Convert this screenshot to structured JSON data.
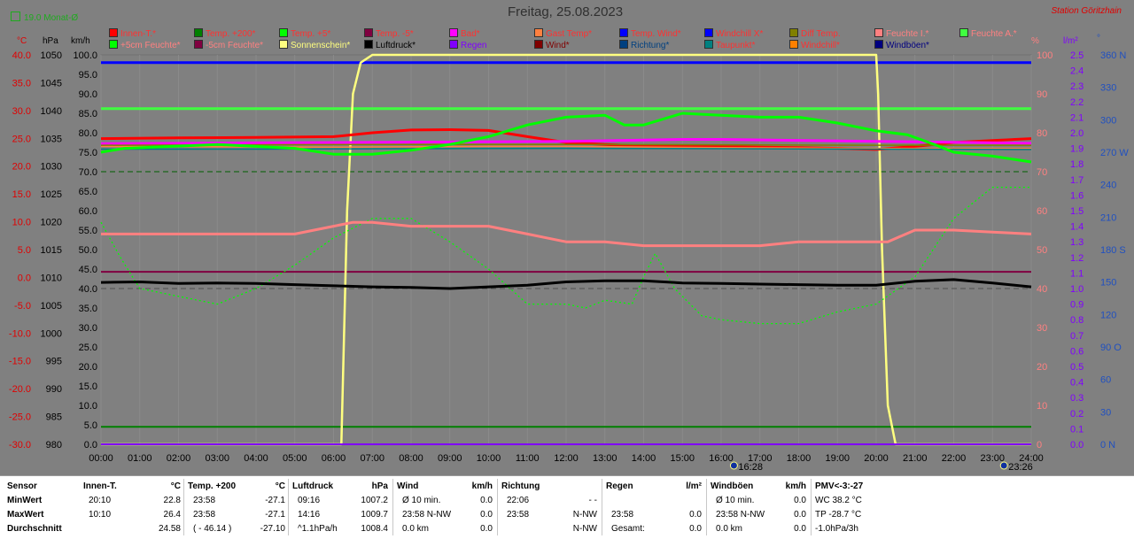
{
  "header": {
    "month_avg": "19.0 Monat-Ø",
    "title": "Freitag, 25.08.2023",
    "station": "Station Göritzhain"
  },
  "legend": [
    {
      "label": "Innen-T.*",
      "color": "#ff0000",
      "text_color": "#ff3030"
    },
    {
      "label": "Temp. +200*",
      "color": "#008000",
      "text_color": "#ff3030"
    },
    {
      "label": "Temp. +5*",
      "color": "#00ff00",
      "text_color": "#ff3030"
    },
    {
      "label": "Temp. -5*",
      "color": "#800040",
      "text_color": "#ff3030"
    },
    {
      "label": "Bad*",
      "color": "#ff00ff",
      "text_color": "#ff3030"
    },
    {
      "label": "Gast Temp*",
      "color": "#ff8040",
      "text_color": "#ff3030"
    },
    {
      "label": "Temp. Wind*",
      "color": "#0000ff",
      "text_color": "#ff3030"
    },
    {
      "label": "Windchill X*",
      "color": "#0000ff",
      "text_color": "#ff3030"
    },
    {
      "label": "Diff Temp.",
      "color": "#808000",
      "text_color": "#ff3030"
    },
    {
      "label": "Feuchte I.*",
      "color": "#ff8080",
      "text_color": "#ff8080"
    },
    {
      "label": "Feuchte A.*",
      "color": "#40ff40",
      "text_color": "#ff8080"
    },
    {
      "label": "+5cm Feuchte*",
      "color": "#00ff00",
      "text_color": "#ff8080"
    },
    {
      "label": "-5cm Feuchte*",
      "color": "#800040",
      "text_color": "#ff8080"
    },
    {
      "label": "Sonnenschein*",
      "color": "#ffff80",
      "text_color": "#ffff80"
    },
    {
      "label": "Luftdruck*",
      "color": "#000000",
      "text_color": "#000000"
    },
    {
      "label": "Regen",
      "color": "#8000ff",
      "text_color": "#8000ff"
    },
    {
      "label": "Wind*",
      "color": "#800000",
      "text_color": "#800000"
    },
    {
      "label": "Richtung*",
      "color": "#004080",
      "text_color": "#004080"
    },
    {
      "label": "Taupunkt*",
      "color": "#008080",
      "text_color": "#ff3030"
    },
    {
      "label": "Windchill*",
      "color": "#ff8000",
      "text_color": "#ff3030"
    },
    {
      "label": "Windböen*",
      "color": "#000080",
      "text_color": "#000080"
    }
  ],
  "units": {
    "celsius": "°C",
    "hpa": "hPa",
    "kmh": "km/h",
    "percent": "%",
    "rain": "l/m²",
    "degree": "°"
  },
  "chart_data": {
    "type": "line",
    "title": "Freitag, 25.08.2023",
    "x_ticks": [
      "00:00",
      "01:00",
      "02:00",
      "03:00",
      "04:00",
      "05:00",
      "06:00",
      "07:00",
      "08:00",
      "09:00",
      "10:00",
      "11:00",
      "12:00",
      "13:00",
      "14:00",
      "15:00",
      "16:00",
      "17:00",
      "18:00",
      "19:00",
      "20:00",
      "21:00",
      "22:00",
      "23:00",
      "24:00"
    ],
    "sunrise": "6:14",
    "sunset": "20:13",
    "moonrise": "16:28",
    "moonset": "23:26",
    "axes": {
      "temp_c": {
        "label": "°C",
        "ticks": [
          "40.0",
          "35.0",
          "30.0",
          "25.0",
          "20.0",
          "15.0",
          "10.0",
          "5.0",
          "0.0",
          "-5.0",
          "-10.0",
          "-15.0",
          "-20.0",
          "-25.0",
          "-30.0"
        ],
        "range": [
          -30,
          40
        ]
      },
      "pressure_hpa": {
        "label": "hPa",
        "ticks": [
          "1050",
          "1045",
          "1040",
          "1035",
          "1030",
          "1025",
          "1020",
          "1015",
          "1010",
          "1005",
          "1000",
          "995",
          "990",
          "985",
          "980"
        ],
        "range": [
          980,
          1050
        ]
      },
      "wind_kmh": {
        "label": "km/h",
        "ticks": [
          "100.0",
          "95.0",
          "90.0",
          "85.0",
          "80.0",
          "75.0",
          "70.0",
          "65.0",
          "60.0",
          "55.0",
          "50.0",
          "45.0",
          "40.0",
          "35.0",
          "30.0",
          "25.0",
          "20.0",
          "15.0",
          "10.0",
          "5.0",
          "0.0"
        ],
        "range": [
          0,
          100
        ]
      },
      "humidity_pct": {
        "label": "%",
        "ticks": [
          "100",
          "90",
          "80",
          "70",
          "60",
          "50",
          "40",
          "30",
          "20",
          "10",
          "0"
        ],
        "range": [
          0,
          100
        ]
      },
      "rain_lm2": {
        "label": "l/m²",
        "ticks": [
          "2.5",
          "2.4",
          "2.3",
          "2.2",
          "2.1",
          "2.0",
          "1.9",
          "1.8",
          "1.7",
          "1.6",
          "1.5",
          "1.4",
          "1.3",
          "1.2",
          "1.1",
          "1.0",
          "0.9",
          "0.8",
          "0.7",
          "0.6",
          "0.5",
          "0.4",
          "0.3",
          "0.2",
          "0.1",
          "0.0"
        ],
        "range": [
          0,
          2.5
        ]
      },
      "direction_deg": {
        "label": "°",
        "ticks": [
          "360 N",
          "330",
          "300",
          "270 W",
          "240",
          "210",
          "180 S",
          "150",
          "120",
          "90 O",
          "60",
          "30",
          "0 N"
        ],
        "range": [
          0,
          360
        ]
      }
    },
    "series": [
      {
        "name": "Temp. Wind*",
        "axis": "wind_kmh",
        "color": "#0000ff",
        "x": [
          0,
          24
        ],
        "y": [
          98,
          98
        ]
      },
      {
        "name": "Feuchte A.*",
        "axis": "wind_kmh",
        "color": "#40ff40",
        "x": [
          0,
          24
        ],
        "y": [
          86.2,
          86.2
        ]
      },
      {
        "name": "Temp. +200*",
        "axis": "wind_kmh",
        "color": "#008000",
        "x": [
          0,
          24
        ],
        "y": [
          4.5,
          4.5
        ]
      },
      {
        "name": "Temp. -5*",
        "axis": "wind_kmh",
        "color": "#800040",
        "x": [
          0,
          24
        ],
        "y": [
          44.3,
          44.3
        ]
      },
      {
        "name": "Sonnenschein*",
        "axis": "humidity_pct",
        "color": "#ffff80",
        "x": [
          0,
          6.2,
          6.35,
          6.5,
          6.7,
          7.0,
          20.0,
          20.05,
          20.15,
          20.3,
          20.5,
          24
        ],
        "y": [
          0,
          0,
          60,
          90,
          98,
          100,
          100,
          90,
          50,
          10,
          0,
          0
        ]
      },
      {
        "name": "Innen-T.*",
        "axis": "wind_kmh",
        "color": "#ff0000",
        "x": [
          0,
          2,
          4,
          6,
          7,
          8,
          9,
          10,
          11,
          12,
          13,
          14,
          15,
          16,
          17,
          18,
          19,
          20,
          21,
          22,
          23,
          24
        ],
        "y": [
          78.5,
          78.7,
          78.8,
          79,
          80,
          80.7,
          80.8,
          80.6,
          79,
          77.5,
          77,
          76.6,
          76.6,
          76.4,
          76.3,
          76.2,
          76,
          75.7,
          76.5,
          77.5,
          78,
          78.5
        ]
      },
      {
        "name": "Bad*",
        "axis": "wind_kmh",
        "color": "#ff00ff",
        "x": [
          0,
          4,
          8,
          12,
          15,
          16,
          20,
          24
        ],
        "y": [
          77.2,
          77.4,
          77.6,
          77.8,
          78.3,
          78.3,
          77.8,
          77.3
        ]
      },
      {
        "name": "Gast Temp*",
        "axis": "wind_kmh",
        "color": "#ff8040",
        "x": [
          0,
          6,
          10,
          12,
          16,
          20,
          24
        ],
        "y": [
          76.5,
          76.3,
          76.5,
          76.5,
          76.2,
          76.0,
          76.0
        ]
      },
      {
        "name": "Diff Temp.",
        "axis": "wind_kmh",
        "color": "#808000",
        "x": [
          0,
          4,
          8,
          12,
          16,
          20,
          24
        ],
        "y": [
          76.8,
          76.9,
          77,
          77,
          76.9,
          76.8,
          76.8
        ]
      },
      {
        "name": "Taupunkt*",
        "axis": "wind_kmh",
        "color": "#008080",
        "x": [
          0,
          4,
          8,
          12,
          16,
          20,
          24
        ],
        "y": [
          75.8,
          75.8,
          75.9,
          76,
          75.9,
          75.8,
          75.7
        ]
      },
      {
        "name": "Temp. +5*",
        "axis": "wind_kmh",
        "color": "#00ff00",
        "x": [
          0,
          0.6,
          3,
          5,
          6,
          7,
          8,
          9,
          10,
          11,
          12,
          13,
          13.5,
          14,
          15,
          16,
          17,
          18,
          19,
          20,
          20.8,
          21.5,
          22,
          23,
          24
        ],
        "y": [
          75,
          76,
          77,
          76,
          74.5,
          74.5,
          75.5,
          77,
          79,
          82,
          84,
          84.5,
          82,
          82,
          85,
          84.5,
          84,
          84,
          82.5,
          80.5,
          79.5,
          77,
          75,
          74,
          72.5
        ]
      },
      {
        "name": "+5cm Feuchte*",
        "axis": "humidity_pct",
        "color": "#00ff00",
        "dashed": true,
        "x": [
          0,
          0.5,
          1,
          2,
          3,
          4,
          5,
          6,
          7,
          8,
          9,
          10,
          11,
          12,
          12.5,
          13,
          13.7,
          14,
          14.3,
          14.8,
          15.5,
          16,
          17,
          18,
          19,
          20,
          21,
          22,
          23,
          24
        ],
        "y": [
          57,
          48,
          40,
          38,
          36,
          40,
          46,
          53,
          58,
          58,
          52,
          45,
          36,
          36,
          35,
          37,
          36,
          43,
          49,
          40,
          33,
          32,
          31,
          31,
          34,
          36,
          43,
          58,
          66,
          66
        ]
      },
      {
        "name": "Feuchte I.*",
        "axis": "humidity_pct",
        "color": "#ff8080",
        "x": [
          0,
          5,
          5.5,
          6,
          6.5,
          7,
          8,
          9,
          10,
          11,
          11.5,
          12,
          13,
          14,
          15,
          16,
          17,
          18,
          19,
          20,
          20.3,
          21,
          22,
          23,
          24
        ],
        "y": [
          54,
          54,
          55,
          56,
          57,
          57,
          56,
          56,
          56,
          54,
          53,
          52,
          52,
          51,
          51,
          51,
          51,
          52,
          52,
          52,
          52,
          55,
          55,
          54.5,
          54
        ]
      },
      {
        "name": "Luftdruck*",
        "axis": "pressure_hpa",
        "color": "#000000",
        "x": [
          0,
          1,
          2,
          3,
          4,
          5,
          6,
          7,
          8,
          9,
          10,
          11,
          12,
          13,
          14,
          15,
          16,
          17,
          18,
          19,
          20,
          21,
          22,
          23,
          24
        ],
        "y": [
          1009.1,
          1009.2,
          1008.9,
          1009,
          1008.9,
          1008.7,
          1008.5,
          1008.3,
          1008.2,
          1008.0,
          1008.3,
          1008.6,
          1009.2,
          1009.4,
          1009.4,
          1009.0,
          1008.9,
          1008.8,
          1008.7,
          1008.6,
          1008.6,
          1009.3,
          1009.6,
          1009.0,
          1008.3
        ]
      },
      {
        "name": "Regen",
        "axis": "rain_lm2",
        "color": "#8000ff",
        "x": [
          0,
          24
        ],
        "y": [
          0,
          0
        ]
      }
    ],
    "reference_lines": [
      {
        "axis": "wind_kmh",
        "value": 70,
        "dashed": true,
        "color": "#006000"
      },
      {
        "axis": "humidity_pct",
        "value": 40,
        "dashed": true,
        "color": "#505050"
      }
    ]
  },
  "table": {
    "rows": [
      "Sensor",
      "MinWert",
      "MaxWert",
      "Durchschnitt"
    ],
    "columns": [
      {
        "name": "Innen-T.",
        "unit": "°C",
        "cells": [
          [
            "20:10",
            "22.8"
          ],
          [
            "10:10",
            "26.4"
          ],
          [
            "",
            "24.58"
          ]
        ]
      },
      {
        "name": "Temp. +200",
        "unit": "°C",
        "cells": [
          [
            "23:58",
            "-27.1"
          ],
          [
            "23:58",
            "-27.1"
          ],
          [
            "( - 46.14 )",
            "-27.10"
          ]
        ]
      },
      {
        "name": "Luftdruck",
        "unit": "hPa",
        "cells": [
          [
            "09:16",
            "1007.2"
          ],
          [
            "14:16",
            "1009.7"
          ],
          [
            "^1.1hPa/h",
            "1008.4"
          ]
        ]
      },
      {
        "name": "Wind",
        "unit": "km/h",
        "cells": [
          [
            "Ø 10 min.",
            "0.0"
          ],
          [
            "23:58   N-NW",
            "0.0"
          ],
          [
            "0.0 km",
            "0.0"
          ]
        ]
      },
      {
        "name": "Richtung",
        "unit": "",
        "cells": [
          [
            "22:06",
            "- -"
          ],
          [
            "23:58",
            "N-NW"
          ],
          [
            "",
            "N-NW"
          ]
        ]
      },
      {
        "name": "Regen",
        "unit": "l/m²",
        "cells": [
          [
            "",
            ""
          ],
          [
            "23:58",
            "0.0"
          ],
          [
            "Gesamt:",
            "0.0"
          ]
        ]
      },
      {
        "name": "Windböen",
        "unit": "km/h",
        "cells": [
          [
            "Ø 10 min.",
            "0.0"
          ],
          [
            "23:58   N-NW",
            "0.0"
          ],
          [
            "0.0 km",
            "0.0"
          ]
        ]
      },
      {
        "name": "PMV<-3:-27",
        "unit": "",
        "cells": [
          [
            "WC 38.2 °C",
            ""
          ],
          [
            "TP -28.7 °C",
            ""
          ],
          [
            "-1.0hPa/3h",
            ""
          ]
        ]
      }
    ]
  }
}
